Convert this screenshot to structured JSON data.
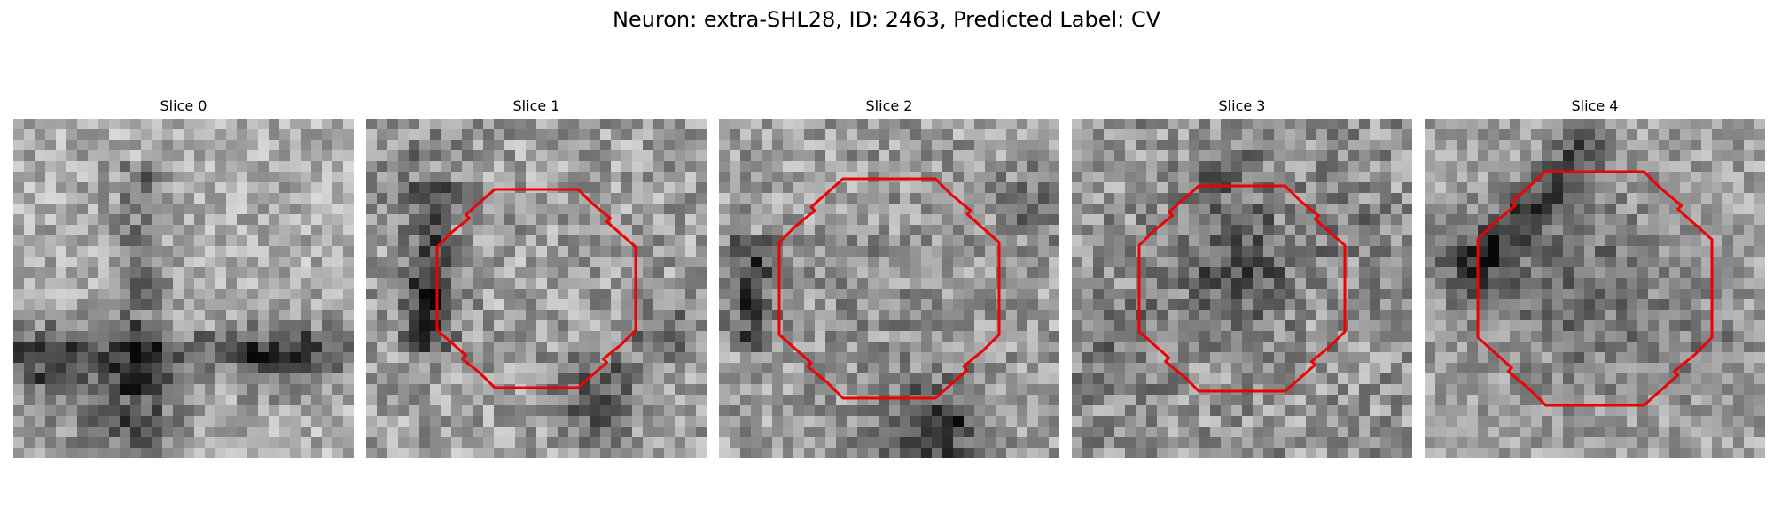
{
  "figure": {
    "title": "Neuron: extra-SHL28, ID: 2463, Predicted Label: CV"
  },
  "panels": [
    {
      "title": "Slice 0",
      "contour": false
    },
    {
      "title": "Slice 1",
      "contour": true
    },
    {
      "title": "Slice 2",
      "contour": true
    },
    {
      "title": "Slice 3",
      "contour": true
    },
    {
      "title": "Slice 4",
      "contour": true
    }
  ],
  "colors": {
    "contour": "#ee0000",
    "background": "#ffffff"
  },
  "colormap": "gray"
}
